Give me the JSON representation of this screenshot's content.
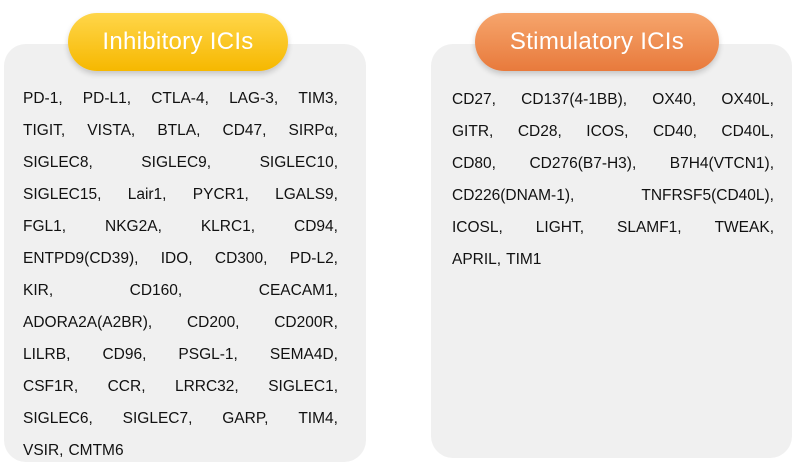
{
  "inhibitory": {
    "title": "Inhibitory ICIs",
    "color": "#f6b800",
    "rows": [
      [
        "PD-1,",
        "PD-L1,",
        "CTLA-4,",
        "LAG-3,",
        "TIM3,"
      ],
      [
        "TIGIT,",
        "VISTA,",
        "BTLA,",
        "CD47,",
        "SIRPα,"
      ],
      [
        "SIGLEC8,",
        "SIGLEC9,",
        "SIGLEC10,"
      ],
      [
        "SIGLEC15,",
        "Lair1,",
        "PYCR1,",
        "LGALS9,"
      ],
      [
        "FGL1,",
        "NKG2A,",
        "KLRC1,",
        "CD94,"
      ],
      [
        "ENTPD9(CD39),",
        "IDO,",
        "CD300,",
        "PD-L2,"
      ],
      [
        "KIR,",
        "CD160,",
        "CEACAM1,"
      ],
      [
        "ADORA2A(A2BR),",
        "CD200,",
        "CD200R,"
      ],
      [
        "LILRB,",
        "CD96,",
        "PSGL-1,",
        "SEMA4D,"
      ],
      [
        "CSF1R,",
        "CCR,",
        "LRRC32,",
        "SIGLEC1,"
      ],
      [
        "SIGLEC6,",
        "SIGLEC7,",
        "GARP,",
        "TIM4,"
      ],
      [
        "VSIR,",
        "CMTM6"
      ]
    ]
  },
  "stimulatory": {
    "title": "Stimulatory ICIs",
    "color": "#e87a3c",
    "rows": [
      [
        "CD27,",
        "CD137(4-1BB),",
        "OX40,",
        "OX40L,"
      ],
      [
        "GITR,",
        "CD28,",
        "ICOS,",
        "CD40,",
        "CD40L,"
      ],
      [
        "CD80,",
        "CD276(B7-H3),",
        "B7H4(VTCN1),"
      ],
      [
        "CD226(DNAM-1),",
        "TNFRSF5(CD40L),"
      ],
      [
        "ICOSL,",
        "LIGHT,",
        "SLAMF1,",
        "TWEAK,"
      ],
      [
        "APRIL,",
        "TIM1"
      ]
    ]
  }
}
